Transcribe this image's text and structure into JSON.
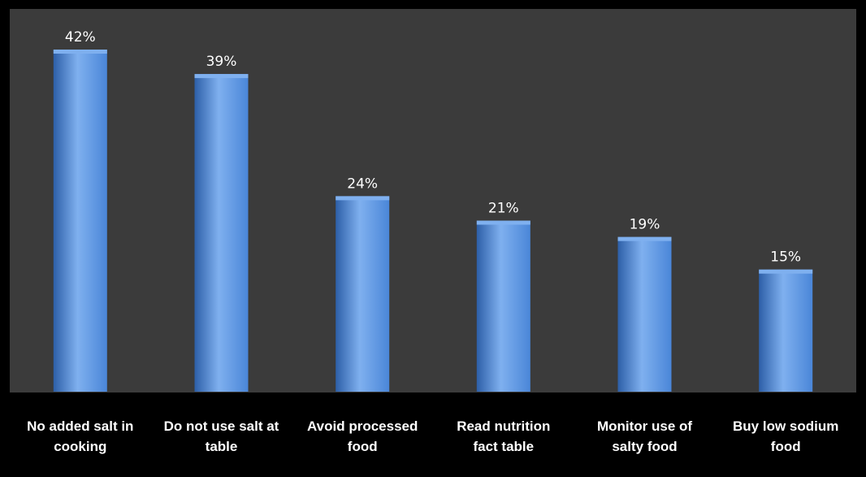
{
  "chart_data": {
    "type": "bar",
    "categories": [
      [
        "No added salt in",
        "cooking"
      ],
      [
        "Do not use salt at",
        "table"
      ],
      [
        "Avoid processed",
        "food"
      ],
      [
        "Read nutrition",
        "fact table"
      ],
      [
        "Monitor use of",
        "salty food"
      ],
      [
        "Buy low sodium",
        "food"
      ]
    ],
    "values": [
      42,
      39,
      24,
      21,
      19,
      15
    ],
    "value_labels": [
      "42%",
      "39%",
      "24%",
      "21%",
      "19%",
      "15%"
    ],
    "ylim": [
      0,
      43.5
    ],
    "grid": false,
    "legend": "none",
    "colors": {
      "background": "#000000",
      "plot_area": "#3b3b3b",
      "bar": "#4a86d8",
      "bar_light": "#7fb0ef",
      "bar_dark": "#2d5fa8",
      "text": "#ffffff"
    }
  }
}
